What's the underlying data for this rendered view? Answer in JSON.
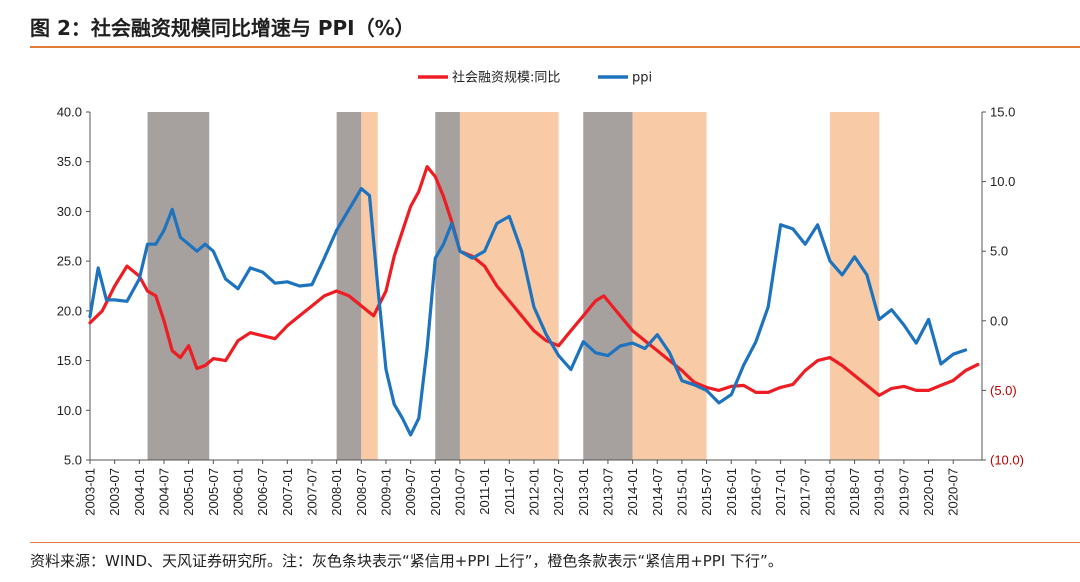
{
  "figure": {
    "title": "图 2：社会融资规模同比增速与 PPI（%）",
    "source": "资料来源：WIND、天风证券研究所。注：灰色条块表示“紧信用+PPI 上行”，橙色条款表示“紧信用+PPI 下行”。"
  },
  "chart_data": {
    "type": "line",
    "x_labels": [
      "2003-01",
      "2003-07",
      "2004-01",
      "2004-07",
      "2005-01",
      "2005-07",
      "2006-01",
      "2006-07",
      "2007-01",
      "2007-07",
      "2008-01",
      "2008-07",
      "2009-01",
      "2009-07",
      "2010-01",
      "2010-07",
      "2011-01",
      "2011-07",
      "2012-01",
      "2012-07",
      "2013-01",
      "2013-07",
      "2014-01",
      "2014-07",
      "2015-01",
      "2015-07",
      "2016-01",
      "2016-07",
      "2017-01",
      "2017-07",
      "2018-01",
      "2018-07",
      "2019-01",
      "2019-07",
      "2020-01",
      "2020-07"
    ],
    "left_axis": {
      "ylim": [
        5.0,
        40.0
      ],
      "ticks": [
        "5.0",
        "10.0",
        "15.0",
        "20.0",
        "25.0",
        "30.0",
        "35.0",
        "40.0"
      ]
    },
    "right_axis": {
      "ylim": [
        -10.0,
        15.0
      ],
      "ticks": [
        "(10.0)",
        "(5.0)",
        "0.0",
        "5.0",
        "10.0",
        "15.0"
      ],
      "tick_values": [
        -10,
        -5,
        0,
        5,
        10,
        15
      ]
    },
    "legend_position": "top-center",
    "bands": [
      {
        "start": "2004-03",
        "end": "2005-06",
        "color": "#a6a09f"
      },
      {
        "start": "2008-01",
        "end": "2008-07",
        "color": "#a6a09f"
      },
      {
        "start": "2008-07",
        "end": "2008-11",
        "color": "#f8cba6"
      },
      {
        "start": "2010-01",
        "end": "2010-07",
        "color": "#a6a09f"
      },
      {
        "start": "2010-07",
        "end": "2012-07",
        "color": "#f8cba6"
      },
      {
        "start": "2013-01",
        "end": "2014-01",
        "color": "#a6a09f"
      },
      {
        "start": "2014-01",
        "end": "2015-07",
        "color": "#f8cba6"
      },
      {
        "start": "2018-01",
        "end": "2019-01",
        "color": "#f8cba6"
      }
    ],
    "series": [
      {
        "name": "社会融资规模:同比",
        "axis": "left",
        "color": "#ee1d23",
        "points": [
          [
            "2003-01",
            18.8
          ],
          [
            "2003-04",
            20.0
          ],
          [
            "2003-07",
            22.5
          ],
          [
            "2003-10",
            24.5
          ],
          [
            "2004-01",
            23.5
          ],
          [
            "2004-03",
            22.0
          ],
          [
            "2004-05",
            21.5
          ],
          [
            "2004-07",
            19.0
          ],
          [
            "2004-09",
            16.0
          ],
          [
            "2004-11",
            15.3
          ],
          [
            "2005-01",
            16.5
          ],
          [
            "2005-03",
            14.2
          ],
          [
            "2005-05",
            14.5
          ],
          [
            "2005-07",
            15.2
          ],
          [
            "2005-10",
            15.0
          ],
          [
            "2006-01",
            17.0
          ],
          [
            "2006-04",
            17.8
          ],
          [
            "2006-07",
            17.5
          ],
          [
            "2006-10",
            17.2
          ],
          [
            "2007-01",
            18.5
          ],
          [
            "2007-04",
            19.5
          ],
          [
            "2007-07",
            20.5
          ],
          [
            "2007-10",
            21.5
          ],
          [
            "2008-01",
            22.0
          ],
          [
            "2008-04",
            21.5
          ],
          [
            "2008-07",
            20.5
          ],
          [
            "2008-10",
            19.5
          ],
          [
            "2009-01",
            22.0
          ],
          [
            "2009-03",
            25.5
          ],
          [
            "2009-05",
            28.0
          ],
          [
            "2009-07",
            30.5
          ],
          [
            "2009-09",
            32.0
          ],
          [
            "2009-11",
            34.5
          ],
          [
            "2010-01",
            33.5
          ],
          [
            "2010-03",
            31.5
          ],
          [
            "2010-05",
            29.0
          ],
          [
            "2010-07",
            26.0
          ],
          [
            "2010-10",
            25.5
          ],
          [
            "2011-01",
            24.5
          ],
          [
            "2011-04",
            22.5
          ],
          [
            "2011-07",
            21.0
          ],
          [
            "2011-10",
            19.5
          ],
          [
            "2012-01",
            18.0
          ],
          [
            "2012-04",
            17.0
          ],
          [
            "2012-07",
            16.5
          ],
          [
            "2012-10",
            18.0
          ],
          [
            "2013-01",
            19.5
          ],
          [
            "2013-04",
            21.0
          ],
          [
            "2013-06",
            21.5
          ],
          [
            "2013-09",
            20.0
          ],
          [
            "2014-01",
            18.0
          ],
          [
            "2014-04",
            17.0
          ],
          [
            "2014-07",
            16.0
          ],
          [
            "2014-10",
            15.0
          ],
          [
            "2015-01",
            14.0
          ],
          [
            "2015-04",
            12.8
          ],
          [
            "2015-07",
            12.3
          ],
          [
            "2015-10",
            12.0
          ],
          [
            "2016-01",
            12.4
          ],
          [
            "2016-04",
            12.5
          ],
          [
            "2016-07",
            11.8
          ],
          [
            "2016-10",
            11.8
          ],
          [
            "2017-01",
            12.3
          ],
          [
            "2017-04",
            12.6
          ],
          [
            "2017-07",
            14.0
          ],
          [
            "2017-10",
            15.0
          ],
          [
            "2018-01",
            15.3
          ],
          [
            "2018-04",
            14.5
          ],
          [
            "2018-07",
            13.5
          ],
          [
            "2018-10",
            12.5
          ],
          [
            "2019-01",
            11.5
          ],
          [
            "2019-04",
            12.2
          ],
          [
            "2019-07",
            12.4
          ],
          [
            "2019-10",
            12.0
          ],
          [
            "2020-01",
            12.0
          ],
          [
            "2020-04",
            12.5
          ],
          [
            "2020-07",
            13.0
          ],
          [
            "2020-10",
            14.0
          ],
          [
            "2021-01",
            14.6
          ]
        ]
      },
      {
        "name": "ppi",
        "axis": "right",
        "color": "#1e73be",
        "points": [
          [
            "2003-01",
            0.3
          ],
          [
            "2003-03",
            3.8
          ],
          [
            "2003-05",
            1.5
          ],
          [
            "2003-07",
            1.5
          ],
          [
            "2003-10",
            1.4
          ],
          [
            "2004-01",
            3.0
          ],
          [
            "2004-03",
            5.5
          ],
          [
            "2004-05",
            5.5
          ],
          [
            "2004-07",
            6.5
          ],
          [
            "2004-09",
            8.0
          ],
          [
            "2004-11",
            6.0
          ],
          [
            "2005-01",
            5.5
          ],
          [
            "2005-03",
            5.0
          ],
          [
            "2005-05",
            5.5
          ],
          [
            "2005-07",
            5.0
          ],
          [
            "2005-10",
            3.0
          ],
          [
            "2006-01",
            2.3
          ],
          [
            "2006-04",
            3.8
          ],
          [
            "2006-07",
            3.5
          ],
          [
            "2006-10",
            2.7
          ],
          [
            "2007-01",
            2.8
          ],
          [
            "2007-04",
            2.5
          ],
          [
            "2007-07",
            2.6
          ],
          [
            "2007-10",
            4.5
          ],
          [
            "2008-01",
            6.5
          ],
          [
            "2008-04",
            8.0
          ],
          [
            "2008-07",
            9.5
          ],
          [
            "2008-09",
            9.0
          ],
          [
            "2008-11",
            2.5
          ],
          [
            "2009-01",
            -3.5
          ],
          [
            "2009-03",
            -6.0
          ],
          [
            "2009-05",
            -7.0
          ],
          [
            "2009-07",
            -8.2
          ],
          [
            "2009-09",
            -7.0
          ],
          [
            "2009-11",
            -2.0
          ],
          [
            "2010-01",
            4.5
          ],
          [
            "2010-03",
            5.5
          ],
          [
            "2010-05",
            7.0
          ],
          [
            "2010-07",
            5.0
          ],
          [
            "2010-10",
            4.5
          ],
          [
            "2011-01",
            5.0
          ],
          [
            "2011-04",
            7.0
          ],
          [
            "2011-07",
            7.5
          ],
          [
            "2011-10",
            5.0
          ],
          [
            "2012-01",
            1.0
          ],
          [
            "2012-04",
            -1.0
          ],
          [
            "2012-07",
            -2.5
          ],
          [
            "2012-10",
            -3.5
          ],
          [
            "2013-01",
            -1.5
          ],
          [
            "2013-04",
            -2.3
          ],
          [
            "2013-07",
            -2.5
          ],
          [
            "2013-10",
            -1.8
          ],
          [
            "2014-01",
            -1.6
          ],
          [
            "2014-04",
            -2.0
          ],
          [
            "2014-07",
            -1.0
          ],
          [
            "2014-10",
            -2.3
          ],
          [
            "2015-01",
            -4.3
          ],
          [
            "2015-04",
            -4.6
          ],
          [
            "2015-07",
            -5.0
          ],
          [
            "2015-10",
            -5.9
          ],
          [
            "2016-01",
            -5.3
          ],
          [
            "2016-04",
            -3.2
          ],
          [
            "2016-07",
            -1.5
          ],
          [
            "2016-10",
            1.0
          ],
          [
            "2017-01",
            6.9
          ],
          [
            "2017-04",
            6.6
          ],
          [
            "2017-07",
            5.5
          ],
          [
            "2017-10",
            6.9
          ],
          [
            "2018-01",
            4.3
          ],
          [
            "2018-04",
            3.3
          ],
          [
            "2018-07",
            4.6
          ],
          [
            "2018-10",
            3.3
          ],
          [
            "2019-01",
            0.1
          ],
          [
            "2019-04",
            0.8
          ],
          [
            "2019-07",
            -0.3
          ],
          [
            "2019-10",
            -1.6
          ],
          [
            "2020-01",
            0.1
          ],
          [
            "2020-04",
            -3.1
          ],
          [
            "2020-07",
            -2.4
          ],
          [
            "2020-10",
            -2.1
          ]
        ]
      }
    ]
  }
}
